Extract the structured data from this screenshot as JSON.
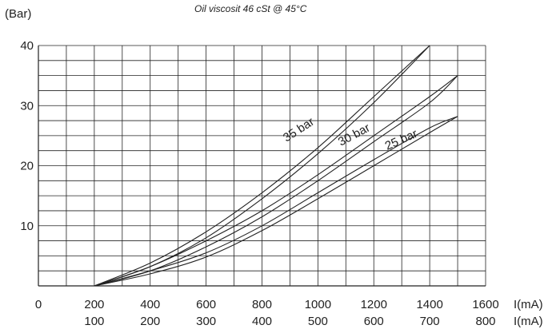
{
  "chart_data": {
    "type": "line",
    "title": "Oil viscosit 46 cSt @ 45°C",
    "ylabel": "(Bar)",
    "xlabel_primary": "I(mA)",
    "xlabel_secondary": "I(mA)",
    "ylim": [
      0,
      40
    ],
    "xlim": [
      0,
      1600
    ],
    "grid": true,
    "y_ticks": [
      "10",
      "20",
      "30",
      "40"
    ],
    "y_tick_values": [
      10,
      20,
      30,
      40
    ],
    "x_ticks_primary": [
      "0",
      "200",
      "400",
      "600",
      "800",
      "1000",
      "1200",
      "1400",
      "1600"
    ],
    "x_ticks_secondary": [
      "100",
      "200",
      "300",
      "400",
      "500",
      "600",
      "700",
      "800"
    ],
    "series": [
      {
        "name": "35 bar",
        "hysteresis": [
          {
            "x": [
              200,
              400,
              600,
              800,
              1000,
              1200,
              1400
            ],
            "y": [
              0,
              3.8,
              9,
              15.5,
              23,
              31.5,
              40
            ]
          },
          {
            "x": [
              200,
              400,
              600,
              800,
              1000,
              1200,
              1400
            ],
            "y": [
              0,
              3.2,
              8,
              14.5,
              22,
              30.5,
              40
            ]
          }
        ]
      },
      {
        "name": "30 bar",
        "hysteresis": [
          {
            "x": [
              200,
              400,
              600,
              800,
              1000,
              1200,
              1400,
              1500
            ],
            "y": [
              0,
              3.2,
              7.5,
              12.5,
              18.5,
              25,
              31.5,
              35
            ]
          },
          {
            "x": [
              200,
              400,
              600,
              800,
              1000,
              1200,
              1400,
              1500
            ],
            "y": [
              0,
              2.5,
              6.5,
              11.5,
              17.5,
              24,
              30.5,
              35
            ]
          }
        ]
      },
      {
        "name": "25 bar",
        "hysteresis": [
          {
            "x": [
              200,
              400,
              600,
              800,
              1000,
              1200,
              1400,
              1500
            ],
            "y": [
              0,
              2.5,
              5.5,
              10,
              15.5,
              21,
              26.3,
              28.2
            ]
          },
          {
            "x": [
              200,
              400,
              600,
              800,
              1000,
              1200,
              1400,
              1500
            ],
            "y": [
              0,
              2.0,
              4.8,
              9.2,
              14.5,
              20,
              25.5,
              28.2
            ]
          }
        ]
      }
    ],
    "colors": {
      "line": "#222222",
      "grid": "#222222"
    }
  }
}
